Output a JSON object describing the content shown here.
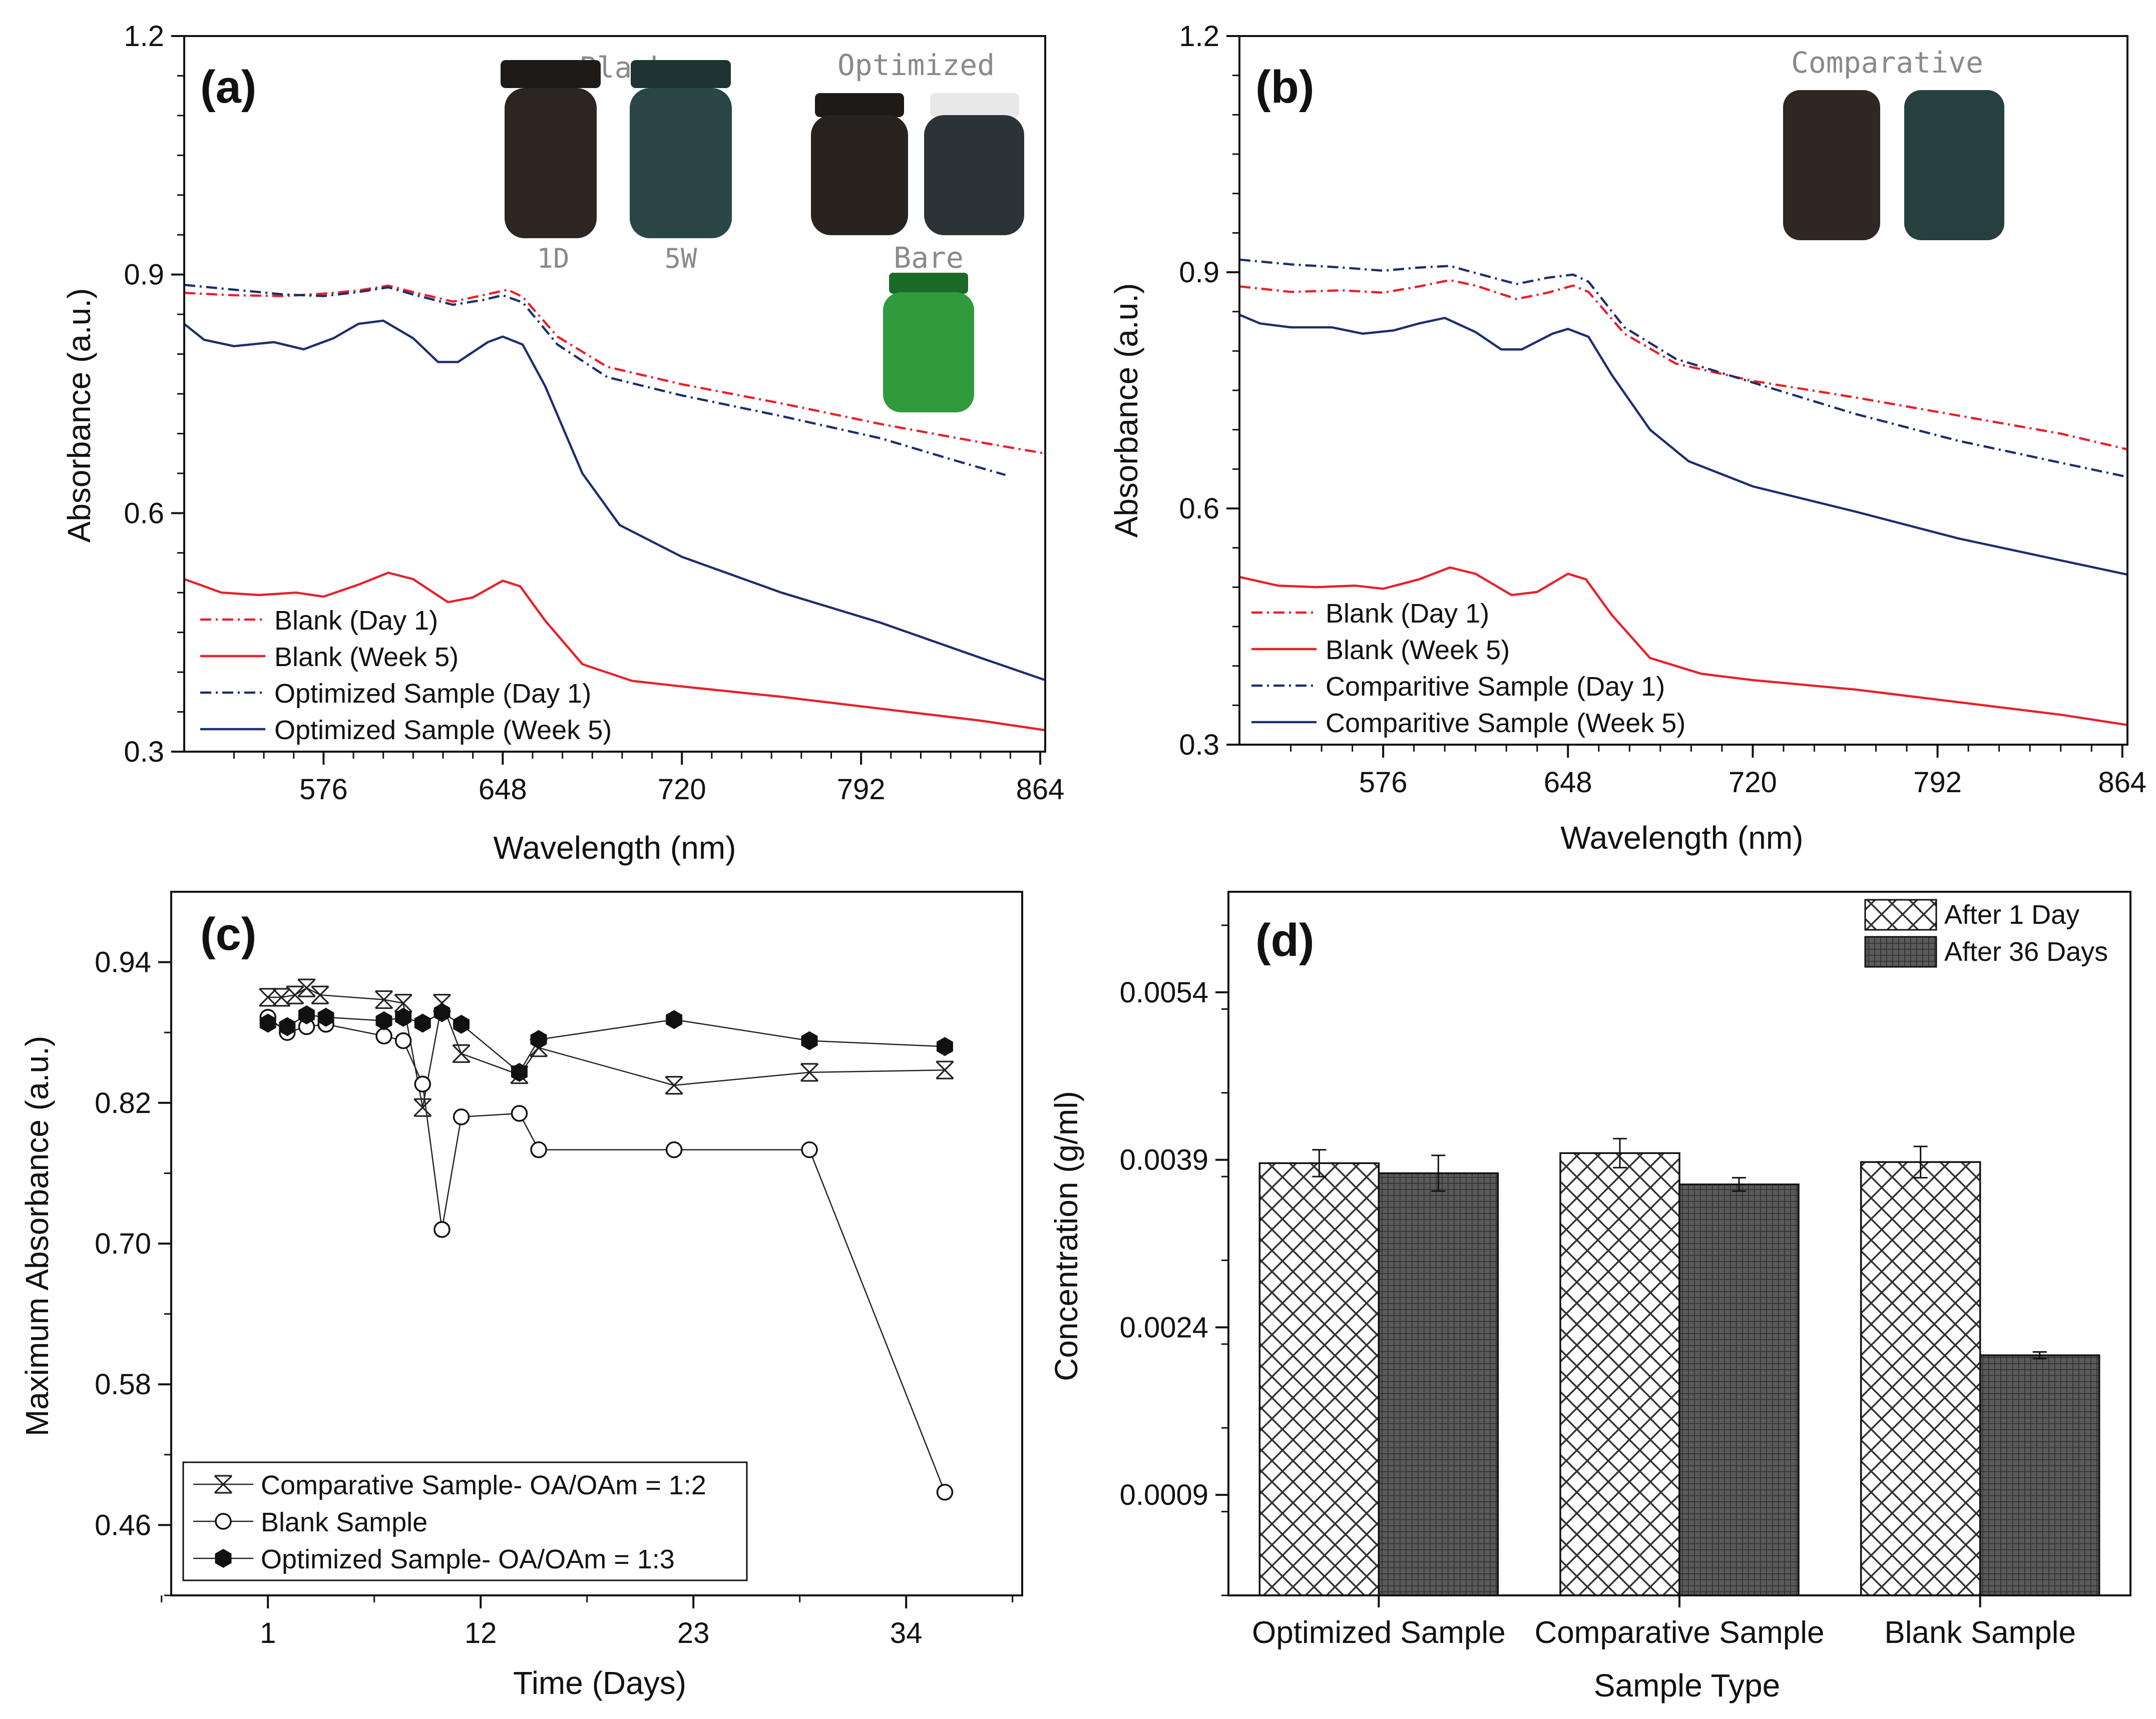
{
  "chart_data": [
    {
      "id": "a",
      "type": "line",
      "panel_label": "(a)",
      "xlabel": "Wavelength (nm)",
      "ylabel": "Absorbance (a.u.)",
      "xlim": [
        520,
        866
      ],
      "ylim": [
        0.3,
        1.2
      ],
      "xticks": [
        "576",
        "648",
        "720",
        "792",
        "864"
      ],
      "yticks": [
        "0.3",
        "0.6",
        "0.9",
        "1.2"
      ],
      "legend_position": "bottom-left",
      "series": [
        {
          "name": "Blank (Day 1)",
          "color": "#e8202a",
          "dash": "dashdot",
          "points": [
            [
              520,
              0.877
            ],
            [
              540,
              0.874
            ],
            [
              560,
              0.873
            ],
            [
              576,
              0.876
            ],
            [
              590,
              0.88
            ],
            [
              602,
              0.886
            ],
            [
              612,
              0.878
            ],
            [
              628,
              0.866
            ],
            [
              640,
              0.874
            ],
            [
              650,
              0.881
            ],
            [
              656,
              0.872
            ],
            [
              670,
              0.822
            ],
            [
              690,
              0.784
            ],
            [
              720,
              0.762
            ],
            [
              760,
              0.738
            ],
            [
              800,
              0.712
            ],
            [
              840,
              0.689
            ],
            [
              866,
              0.675
            ]
          ]
        },
        {
          "name": "Blank (Week 5)",
          "color": "#e8202a",
          "dash": "solid",
          "points": [
            [
              520,
              0.517
            ],
            [
              535,
              0.5
            ],
            [
              550,
              0.497
            ],
            [
              565,
              0.5
            ],
            [
              576,
              0.495
            ],
            [
              590,
              0.51
            ],
            [
              602,
              0.525
            ],
            [
              612,
              0.517
            ],
            [
              626,
              0.488
            ],
            [
              636,
              0.494
            ],
            [
              648,
              0.515
            ],
            [
              655,
              0.508
            ],
            [
              665,
              0.465
            ],
            [
              680,
              0.41
            ],
            [
              700,
              0.389
            ],
            [
              720,
              0.382
            ],
            [
              760,
              0.369
            ],
            [
              800,
              0.354
            ],
            [
              840,
              0.339
            ],
            [
              866,
              0.327
            ]
          ]
        },
        {
          "name": "Optimized Sample (Day 1)",
          "color": "#1c2e6e",
          "dash": "dashdot",
          "points": [
            [
              520,
              0.887
            ],
            [
              540,
              0.881
            ],
            [
              560,
              0.875
            ],
            [
              576,
              0.873
            ],
            [
              590,
              0.878
            ],
            [
              602,
              0.884
            ],
            [
              612,
              0.875
            ],
            [
              628,
              0.862
            ],
            [
              640,
              0.868
            ],
            [
              648,
              0.874
            ],
            [
              656,
              0.865
            ],
            [
              670,
              0.812
            ],
            [
              690,
              0.771
            ],
            [
              720,
              0.748
            ],
            [
              760,
              0.722
            ],
            [
              800,
              0.694
            ],
            [
              830,
              0.666
            ],
            [
              850,
              0.648
            ]
          ]
        },
        {
          "name": "Optimized Sample (Week 5)",
          "color": "#1c2e6e",
          "dash": "solid",
          "points": [
            [
              520,
              0.838
            ],
            [
              528,
              0.818
            ],
            [
              540,
              0.81
            ],
            [
              556,
              0.815
            ],
            [
              568,
              0.806
            ],
            [
              580,
              0.82
            ],
            [
              590,
              0.838
            ],
            [
              600,
              0.842
            ],
            [
              612,
              0.82
            ],
            [
              622,
              0.79
            ],
            [
              630,
              0.79
            ],
            [
              642,
              0.815
            ],
            [
              648,
              0.822
            ],
            [
              656,
              0.812
            ],
            [
              665,
              0.76
            ],
            [
              680,
              0.65
            ],
            [
              695,
              0.585
            ],
            [
              720,
              0.545
            ],
            [
              760,
              0.5
            ],
            [
              800,
              0.462
            ],
            [
              840,
              0.418
            ],
            [
              866,
              0.39
            ]
          ]
        }
      ],
      "insets": [
        {
          "label_top": "Blank",
          "captions": [
            "1D",
            "5W"
          ],
          "vial_colors": [
            "#2c2522",
            "#2a4646"
          ]
        },
        {
          "label_top": "Optimized",
          "vial_colors": [
            "#29231f",
            "#2b3337"
          ]
        },
        {
          "label_top": "Bare",
          "vial_colors": [
            "#2f9b3d"
          ]
        }
      ]
    },
    {
      "id": "b",
      "type": "line",
      "panel_label": "(b)",
      "xlabel": "Wavelength (nm)",
      "ylabel": "Absorbance (a.u.)",
      "xlim": [
        520,
        866
      ],
      "ylim": [
        0.3,
        1.2
      ],
      "xticks": [
        "576",
        "648",
        "720",
        "792",
        "864"
      ],
      "yticks": [
        "0.3",
        "0.6",
        "0.9",
        "1.2"
      ],
      "legend_position": "bottom-left",
      "series": [
        {
          "name": "Blank (Day 1)",
          "color": "#e8202a",
          "dash": "dashdot",
          "points": [
            [
              520,
              0.882
            ],
            [
              540,
              0.875
            ],
            [
              560,
              0.877
            ],
            [
              576,
              0.874
            ],
            [
              590,
              0.882
            ],
            [
              602,
              0.89
            ],
            [
              612,
              0.883
            ],
            [
              628,
              0.866
            ],
            [
              640,
              0.874
            ],
            [
              650,
              0.883
            ],
            [
              656,
              0.875
            ],
            [
              670,
              0.822
            ],
            [
              690,
              0.784
            ],
            [
              720,
              0.762
            ],
            [
              760,
              0.741
            ],
            [
              800,
              0.718
            ],
            [
              840,
              0.695
            ],
            [
              866,
              0.675
            ]
          ]
        },
        {
          "name": "Blank (Week 5)",
          "color": "#e8202a",
          "dash": "solid",
          "points": [
            [
              520,
              0.513
            ],
            [
              535,
              0.502
            ],
            [
              550,
              0.5
            ],
            [
              565,
              0.502
            ],
            [
              576,
              0.498
            ],
            [
              590,
              0.51
            ],
            [
              602,
              0.525
            ],
            [
              612,
              0.517
            ],
            [
              626,
              0.49
            ],
            [
              636,
              0.494
            ],
            [
              648,
              0.517
            ],
            [
              655,
              0.51
            ],
            [
              665,
              0.465
            ],
            [
              680,
              0.41
            ],
            [
              700,
              0.39
            ],
            [
              720,
              0.382
            ],
            [
              760,
              0.37
            ],
            [
              800,
              0.354
            ],
            [
              840,
              0.338
            ],
            [
              866,
              0.325
            ]
          ]
        },
        {
          "name": "Comparitive Sample (Day 1)",
          "color": "#1c2e6e",
          "dash": "dashdot",
          "points": [
            [
              520,
              0.916
            ],
            [
              540,
              0.91
            ],
            [
              560,
              0.906
            ],
            [
              576,
              0.902
            ],
            [
              590,
              0.906
            ],
            [
              602,
              0.908
            ],
            [
              612,
              0.899
            ],
            [
              628,
              0.885
            ],
            [
              640,
              0.893
            ],
            [
              650,
              0.897
            ],
            [
              656,
              0.888
            ],
            [
              670,
              0.83
            ],
            [
              690,
              0.79
            ],
            [
              720,
              0.76
            ],
            [
              760,
              0.72
            ],
            [
              800,
              0.686
            ],
            [
              840,
              0.658
            ],
            [
              866,
              0.64
            ]
          ]
        },
        {
          "name": "Comparitive Sample (Week 5)",
          "color": "#1c2e6e",
          "dash": "solid",
          "points": [
            [
              520,
              0.846
            ],
            [
              528,
              0.835
            ],
            [
              540,
              0.83
            ],
            [
              556,
              0.83
            ],
            [
              568,
              0.822
            ],
            [
              580,
              0.826
            ],
            [
              590,
              0.835
            ],
            [
              600,
              0.842
            ],
            [
              612,
              0.824
            ],
            [
              622,
              0.802
            ],
            [
              630,
              0.802
            ],
            [
              642,
              0.822
            ],
            [
              648,
              0.828
            ],
            [
              656,
              0.818
            ],
            [
              665,
              0.77
            ],
            [
              680,
              0.7
            ],
            [
              695,
              0.66
            ],
            [
              720,
              0.628
            ],
            [
              760,
              0.596
            ],
            [
              800,
              0.562
            ],
            [
              840,
              0.534
            ],
            [
              866,
              0.516
            ]
          ]
        }
      ],
      "insets": [
        {
          "label_top": "Comparative",
          "vial_colors": [
            "#2f2723",
            "#27403f"
          ]
        }
      ]
    },
    {
      "id": "c",
      "type": "scatter",
      "panel_label": "(c)",
      "xlabel": "Time (Days)",
      "ylabel": "Maximum Absorbance (a.u.)",
      "xlim": [
        -4,
        40
      ],
      "ylim": [
        0.4,
        1.0
      ],
      "xticks": [
        "1",
        "12",
        "23",
        "34"
      ],
      "yticks": [
        "0.46",
        "0.58",
        "0.70",
        "0.82",
        "0.94"
      ],
      "legend_position": "bottom-left",
      "series": [
        {
          "name": "Comparative Sample- OA/OAm = 1:2",
          "marker": "star-square",
          "x": [
            1,
            1.7,
            2.4,
            3,
            3.7,
            7,
            8,
            9,
            10,
            11,
            14,
            15,
            22,
            29,
            36
          ],
          "y": [
            0.91,
            0.91,
            0.912,
            0.918,
            0.912,
            0.908,
            0.905,
            0.816,
            0.905,
            0.862,
            0.844,
            0.867,
            0.835,
            0.846,
            0.848
          ]
        },
        {
          "name": "Blank Sample",
          "marker": "open-circle",
          "x": [
            1,
            2,
            3,
            4,
            7,
            8,
            9,
            10,
            11,
            14,
            15,
            22,
            29,
            36
          ],
          "y": [
            0.893,
            0.88,
            0.885,
            0.887,
            0.877,
            0.873,
            0.836,
            0.712,
            0.808,
            0.811,
            0.78,
            0.78,
            0.78,
            0.488
          ]
        },
        {
          "name": "Optimized Sample- OA/OAm = 1:3",
          "marker": "filled-hexagon",
          "x": [
            1,
            2,
            3,
            4,
            7,
            8,
            9,
            10,
            11,
            14,
            15,
            22,
            29,
            36
          ],
          "y": [
            0.888,
            0.885,
            0.895,
            0.893,
            0.89,
            0.893,
            0.888,
            0.897,
            0.887,
            0.846,
            0.874,
            0.891,
            0.873,
            0.868
          ]
        }
      ]
    },
    {
      "id": "d",
      "type": "bar",
      "panel_label": "(d)",
      "xlabel": "Sample Type",
      "ylabel": "Concentration (g/ml)",
      "ylim": [
        0.0,
        0.0063
      ],
      "yticks": [
        "0.0009",
        "0.0024",
        "0.0039",
        "0.0054"
      ],
      "categories": [
        "Optimized Sample",
        "Comparative Sample",
        "Blank Sample"
      ],
      "legend_position": "top-right",
      "series": [
        {
          "name": "After 1 Day",
          "pattern": "crosshatch",
          "values": [
            0.00387,
            0.00396,
            0.00388
          ],
          "errors": [
            0.00012,
            0.00013,
            0.00014
          ]
        },
        {
          "name": "After 36 Days",
          "pattern": "dense-grid",
          "values": [
            0.00378,
            0.00368,
            0.00215
          ],
          "errors": [
            0.00016,
            6e-05,
            3e-05
          ]
        }
      ]
    }
  ]
}
